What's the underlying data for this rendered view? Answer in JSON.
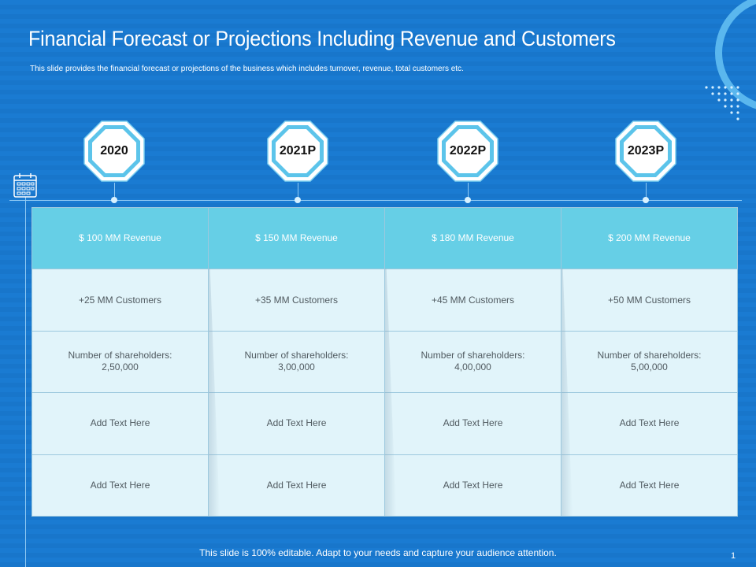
{
  "slide": {
    "title": "Financial Forecast or Projections Including Revenue and Customers",
    "subtitle": "This slide provides the financial forecast or projections of the business which includes turnover, revenue, total customers etc.",
    "footer": "This slide is 100% editable. Adapt to your needs and capture your audience attention.",
    "page_number": "1"
  },
  "icons": {
    "calendar": "calendar-icon",
    "dots": "dot-grid-decoration",
    "ring": "ring-decoration"
  },
  "colors": {
    "background": "#1a7bd2",
    "header_row": "#66cfe6",
    "cell": "#e1f4fa",
    "accent": "#5ab7ee"
  },
  "years": [
    "2020",
    "2021P",
    "2022P",
    "2023P"
  ],
  "table": {
    "rows": [
      [
        "$ 100 MM Revenue",
        "$ 150 MM Revenue",
        "$ 180 MM Revenue",
        "$ 200 MM Revenue"
      ],
      [
        "+25 MM Customers",
        "+35 MM Customers",
        "+45 MM Customers",
        "+50 MM Customers"
      ],
      [
        [
          "Number of shareholders:",
          "2,50,000"
        ],
        [
          "Number of shareholders:",
          "3,00,000"
        ],
        [
          "Number of shareholders:",
          "4,00,000"
        ],
        [
          "Number of shareholders:",
          "5,00,000"
        ]
      ],
      [
        "Add Text Here",
        "Add Text Here",
        "Add Text Here",
        "Add Text Here"
      ],
      [
        "Add Text Here",
        "Add Text Here",
        "Add Text Here",
        "Add Text Here"
      ]
    ]
  }
}
